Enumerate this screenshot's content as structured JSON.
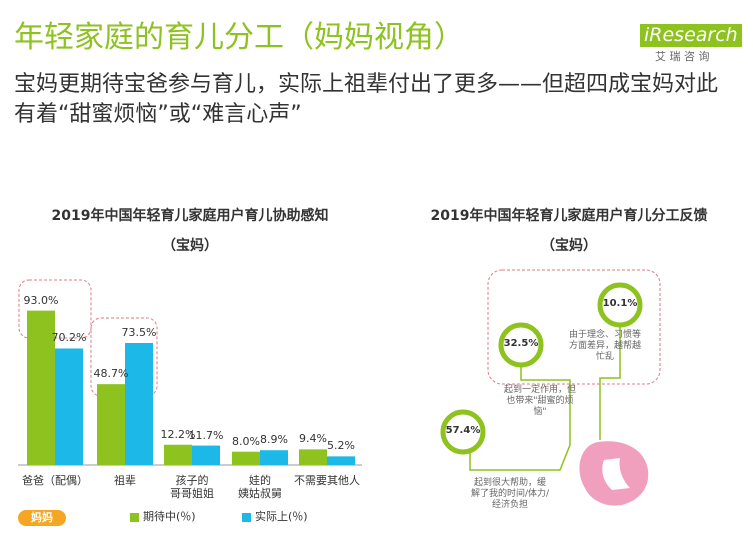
{
  "header": {
    "title": "年轻家庭的育儿分工（妈妈视角）",
    "subtitle": "宝妈更期待宝爸参与育儿，实际上祖辈付出了更多——但超四成宝妈对此有着“甜蜜烦恼”或“难言心声”"
  },
  "logo": {
    "name": "iResearch",
    "cn": "艾 瑞 咨 询"
  },
  "chart_data": [
    {
      "type": "bar",
      "title": "2019年中国年轻育儿家庭用户育儿协助感知",
      "subtitle": "（宝妈）",
      "tag": "妈妈",
      "categories": [
        "爸爸（配偶）",
        "祖辈",
        "孩子的\n哥哥姐姐",
        "娃的\n姨姑叔舅",
        "不需要其他人"
      ],
      "series": [
        {
          "name": "期待中(％)",
          "color": "#8dc21f",
          "values": [
            93.0,
            48.7,
            12.2,
            8.0,
            9.4
          ],
          "value_labels": [
            "93.0%",
            "48.7%",
            "12.2%",
            "8.0%",
            "9.4%"
          ]
        },
        {
          "name": "实际上(％)",
          "color": "#1cb8e8",
          "values": [
            70.2,
            73.5,
            11.7,
            8.9,
            5.2
          ],
          "value_labels": [
            "70.2%",
            "73.5%",
            "11.7%",
            "8.9%",
            "5.2%"
          ]
        }
      ]
    },
    {
      "type": "rings",
      "title": "2019年中国年轻育儿家庭用户育儿分工反馈",
      "subtitle": "（宝妈）",
      "color": "#8dc21f",
      "categories": [
        "起到很大帮助，缓解了我的时间/体力/经济负担",
        "起到一定作用，但也带来\"甜蜜的烦恼\"",
        "由于理念、习惯等方面差异，越帮越忙乱"
      ],
      "values": [
        57.4,
        32.5,
        10.1
      ],
      "value_labels": [
        "57.4%",
        "32.5%",
        "10.1%"
      ]
    }
  ]
}
